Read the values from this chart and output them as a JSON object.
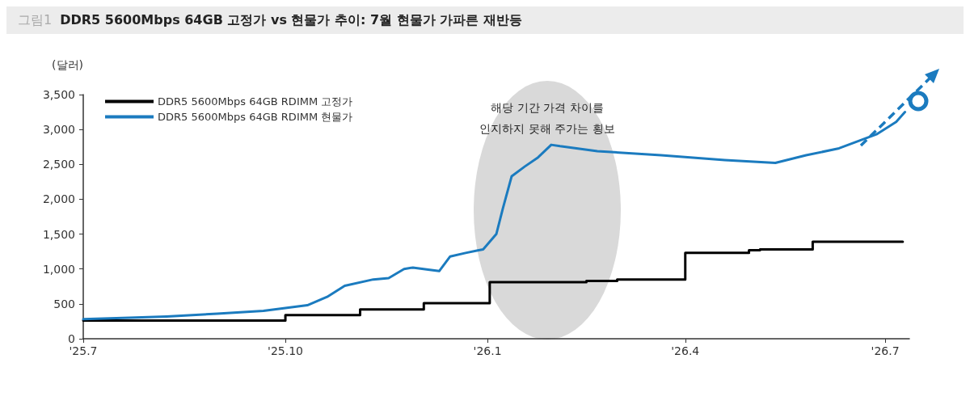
{
  "chart_data": {
    "type": "line",
    "title": "그림1 DDR5 5600Mbps 64GB 고정가 vs 현물가 추이: 7월 현물가 가파른 재반등",
    "ylabel": "(달러)",
    "annotations": [
      "해당 기간 가격 차이를\n인지하지 못해 주가는 횡보"
    ],
    "xlim": [
      "2025-07-01",
      "2026-07-12"
    ],
    "xticks": [
      {
        "value": "2025-07-01",
        "label": "'25.7"
      },
      {
        "value": "2025-10-01",
        "label": "'25.10"
      },
      {
        "value": "2026-01-01",
        "label": "'26.1"
      },
      {
        "value": "2026-04-01",
        "label": "'26.4"
      },
      {
        "value": "2026-07-01",
        "label": "'26.7"
      }
    ],
    "ylim": [
      0,
      3500
    ],
    "yticks": [
      0,
      500,
      {
        "value": 1000,
        "label": "1,000"
      },
      {
        "value": 1500,
        "label": "1,500"
      },
      {
        "value": 2000,
        "label": "2,000"
      },
      {
        "value": 2500,
        "label": "2,500"
      },
      {
        "value": 3000,
        "label": "3,000"
      },
      {
        "value": 3500,
        "label": "3,500"
      }
    ],
    "grid": false,
    "legend": "top left",
    "marker": "none",
    "line_style": "solid",
    "series": [
      {
        "name": "DDR5 5600Mbps 64GB RDIMM 고정가",
        "type": "step",
        "color": "#000000",
        "x": [
          "2025-07-01",
          "2025-10-01",
          "2025-11-04",
          "2025-12-03",
          "2026-01-02",
          "2026-02-15",
          "2026-03-01",
          "2026-04-01",
          "2026-04-30",
          "2026-05-05",
          "2026-05-29",
          "2026-07-09"
        ],
        "values": [
          260,
          340,
          420,
          510,
          810,
          830,
          850,
          1230,
          1270,
          1280,
          1390,
          1390
        ]
      },
      {
        "name": "DDR5 5600Mbps 64GB RDIMM 현물가",
        "color": "#1b7bbf",
        "x": [
          "2025-07-01",
          "2025-07-22",
          "2025-08-08",
          "2025-08-31",
          "2025-09-21",
          "2025-10-01",
          "2025-10-11",
          "2025-10-20",
          "2025-10-28",
          "2025-11-10",
          "2025-11-17",
          "2025-11-24",
          "2025-11-28",
          "2025-12-05",
          "2025-12-10",
          "2025-12-15",
          "2025-12-22",
          "2025-12-28",
          "2025-12-30",
          "2026-01-05",
          "2026-01-08",
          "2026-01-12",
          "2026-01-18",
          "2026-01-24",
          "2026-01-30",
          "2026-02-03",
          "2026-02-20",
          "2026-03-21",
          "2026-04-19",
          "2026-05-12",
          "2026-05-26",
          "2026-06-10",
          "2026-06-27",
          "2026-07-06",
          "2026-07-10"
        ],
        "values": [
          280,
          300,
          320,
          360,
          400,
          440,
          480,
          600,
          760,
          850,
          870,
          1000,
          1020,
          990,
          970,
          1180,
          1230,
          1270,
          1280,
          1500,
          1870,
          2330,
          2470,
          2600,
          2780,
          2760,
          2690,
          2630,
          2560,
          2520,
          2630,
          2730,
          2930,
          3110,
          3250
        ]
      }
    ]
  }
}
